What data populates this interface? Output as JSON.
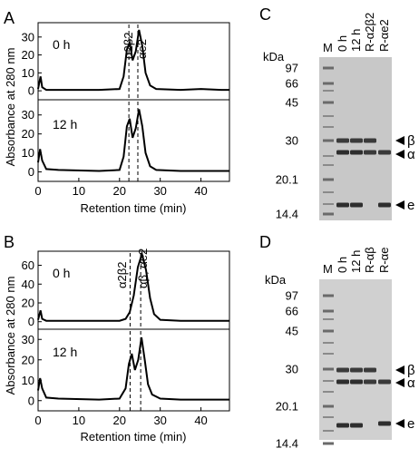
{
  "figure": {
    "ylabel": "Absorbance at 280 nm",
    "xlabel": "Retention time (min)",
    "x_ticks": [
      "0",
      "10",
      "20",
      "30",
      "40"
    ],
    "panels": {
      "A": {
        "letter": "A",
        "peak_label_1": "α2β2",
        "peak_label_2": "αe2",
        "top": {
          "time_label": "0 h",
          "y_ticks": [
            "0",
            "10",
            "20",
            "30"
          ]
        },
        "bottom": {
          "time_label": "12 h",
          "y_ticks": [
            "0",
            "10",
            "20",
            "30"
          ]
        }
      },
      "B": {
        "letter": "B",
        "peak_label_1": "α2β2",
        "peak_label_2": "αβ, αe2",
        "top": {
          "time_label": "0 h",
          "y_ticks": [
            "0",
            "20",
            "40",
            "60"
          ]
        },
        "bottom": {
          "time_label": "12 h",
          "y_ticks": [
            "0",
            "10",
            "20",
            "30"
          ]
        }
      },
      "C": {
        "letter": "C",
        "kda": "kDa",
        "marker_weights": [
          "97",
          "66",
          "45",
          "30",
          "20.1",
          "14.4"
        ],
        "lanes": [
          "M",
          "0 h",
          "12 h",
          "R-α2β2",
          "R-αe2"
        ],
        "band_labels": [
          "β",
          "α",
          "e"
        ]
      },
      "D": {
        "letter": "D",
        "kda": "kDa",
        "marker_weights": [
          "97",
          "66",
          "45",
          "30",
          "20.1",
          "14.4"
        ],
        "lanes": [
          "M",
          "0 h",
          "12 h",
          "R-αβ",
          "R-αe"
        ],
        "band_labels": [
          "β",
          "α",
          "e"
        ]
      }
    }
  },
  "chart_data": [
    {
      "type": "line",
      "title": "A 0 h",
      "xlabel": "Retention time (min)",
      "ylabel": "Absorbance at 280 nm",
      "xlim": [
        0,
        47
      ],
      "ylim": [
        -5,
        38
      ],
      "series": [
        {
          "x": [
            0,
            0.6,
            1,
            2,
            5,
            15,
            20,
            21,
            21.8,
            22.5,
            23.2,
            24,
            24.8,
            25.6,
            26.4,
            27.5,
            29,
            35,
            40,
            45,
            47
          ],
          "y": [
            1,
            8,
            2,
            0.5,
            0.5,
            0.5,
            1,
            8,
            23,
            27,
            17,
            22,
            34,
            25,
            10,
            3,
            1,
            0.5,
            1,
            0.5,
            0.5
          ]
        }
      ]
    },
    {
      "type": "line",
      "title": "A 12 h",
      "xlabel": "Retention time (min)",
      "ylabel": "Absorbance at 280 nm",
      "xlim": [
        0,
        47
      ],
      "ylim": [
        -5,
        38
      ],
      "series": [
        {
          "x": [
            0,
            0.5,
            1,
            2,
            5,
            15,
            20,
            21,
            21.8,
            22.5,
            23.2,
            24,
            24.8,
            25.6,
            26.4,
            27.5,
            29,
            35,
            40,
            45,
            47
          ],
          "y": [
            5,
            12,
            6,
            1.5,
            1,
            0.5,
            1,
            8,
            24,
            28,
            18,
            23,
            33,
            24,
            10,
            3,
            1,
            0.5,
            0.5,
            0.5,
            0.5
          ]
        }
      ]
    },
    {
      "type": "line",
      "title": "B 0 h",
      "xlabel": "Retention time (min)",
      "ylabel": "Absorbance at 280 nm",
      "xlim": [
        0,
        47
      ],
      "ylim": [
        -8,
        75
      ],
      "series": [
        {
          "x": [
            0,
            0.6,
            1,
            2,
            5,
            15,
            20,
            21.5,
            22.5,
            23.5,
            24.5,
            25.5,
            26.5,
            27.5,
            28.5,
            30,
            35,
            40,
            45,
            47
          ],
          "y": [
            2,
            12,
            3,
            1,
            1,
            1,
            1,
            3,
            10,
            28,
            58,
            72,
            55,
            25,
            8,
            2,
            1,
            1,
            1,
            1
          ]
        }
      ]
    },
    {
      "type": "line",
      "title": "B 12 h",
      "xlabel": "Retention time (min)",
      "ylabel": "Absorbance at 280 nm",
      "xlim": [
        0,
        47
      ],
      "ylim": [
        -5,
        35
      ],
      "series": [
        {
          "x": [
            0,
            0.5,
            1,
            2,
            5,
            15,
            20,
            21.5,
            22.3,
            23,
            23.8,
            24.6,
            25.4,
            26.2,
            27,
            28,
            30,
            35,
            40,
            45,
            47
          ],
          "y": [
            5,
            11,
            6,
            1.5,
            1,
            0.5,
            1,
            6,
            18,
            23,
            15,
            20,
            31,
            20,
            8,
            3,
            1,
            0.5,
            0.5,
            0.5,
            0.5
          ]
        }
      ]
    }
  ]
}
